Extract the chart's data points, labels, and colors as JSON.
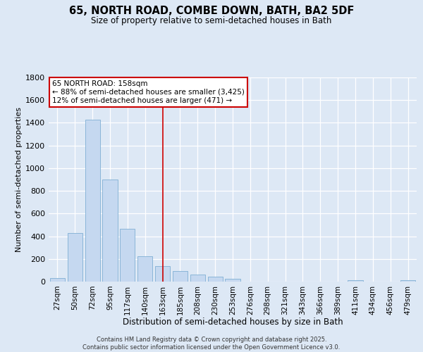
{
  "title_line1": "65, NORTH ROAD, COMBE DOWN, BATH, BA2 5DF",
  "title_line2": "Size of property relative to semi-detached houses in Bath",
  "xlabel": "Distribution of semi-detached houses by size in Bath",
  "ylabel": "Number of semi-detached properties",
  "categories": [
    "27sqm",
    "50sqm",
    "72sqm",
    "95sqm",
    "117sqm",
    "140sqm",
    "163sqm",
    "185sqm",
    "208sqm",
    "230sqm",
    "253sqm",
    "276sqm",
    "298sqm",
    "321sqm",
    "343sqm",
    "366sqm",
    "389sqm",
    "411sqm",
    "434sqm",
    "456sqm",
    "479sqm"
  ],
  "values": [
    30,
    430,
    1430,
    900,
    465,
    225,
    135,
    95,
    60,
    45,
    25,
    0,
    0,
    0,
    0,
    0,
    0,
    15,
    0,
    0,
    15
  ],
  "bar_color": "#c5d8f0",
  "bar_edge_color": "#7fafd4",
  "vline_idx": 6,
  "vline_color": "#cc0000",
  "annotation_line1": "65 NORTH ROAD: 158sqm",
  "annotation_line2": "← 88% of semi-detached houses are smaller (3,425)",
  "annotation_line3": "12% of semi-detached houses are larger (471) →",
  "annotation_box_color": "#ffffff",
  "annotation_box_edge": "#cc0000",
  "ylim_max": 1800,
  "yticks": [
    0,
    200,
    400,
    600,
    800,
    1000,
    1200,
    1400,
    1600,
    1800
  ],
  "bg_color": "#dde8f5",
  "footnote": "Contains HM Land Registry data © Crown copyright and database right 2025.\nContains public sector information licensed under the Open Government Licence v3.0."
}
